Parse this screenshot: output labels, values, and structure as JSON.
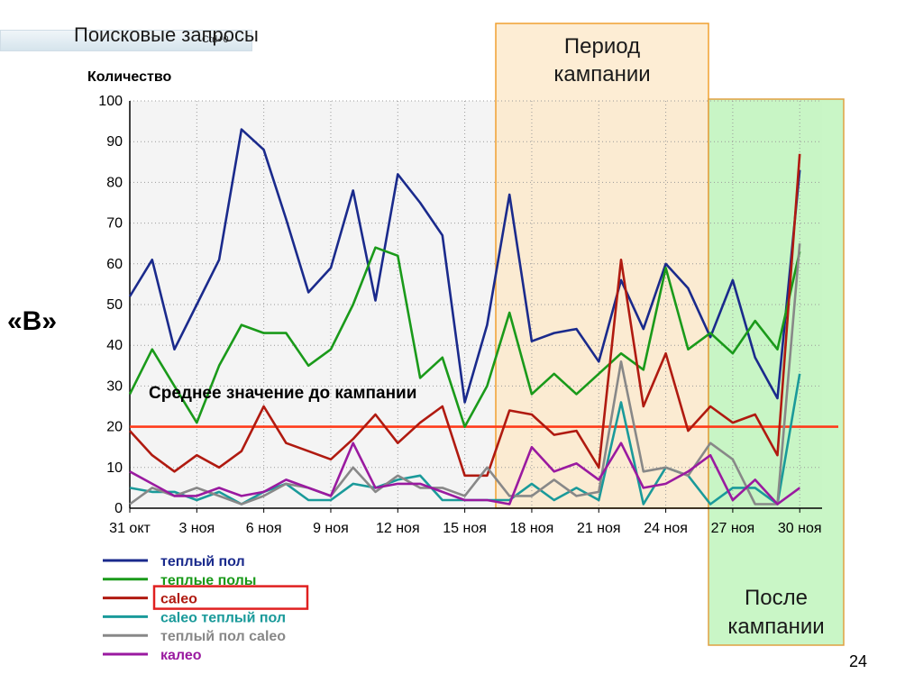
{
  "slide": {
    "title": "Поисковые запросы",
    "zoom_hint": "Ctrl+0",
    "side_label": "«В»",
    "page_number": "24",
    "campaign_box": [
      "Период",
      "кампании"
    ],
    "after_box": [
      "После",
      "кампании"
    ],
    "highlight_legend": "caleo",
    "colors": {
      "campaign_fill": "#fde9c9",
      "campaign_border": "#f0a030",
      "after_fill": "#bff5bc",
      "after_border": "#e0a040",
      "highlight_border": "#e02020"
    }
  },
  "chart_data": {
    "type": "line",
    "ylabel": "Количество",
    "ylim": [
      0,
      100
    ],
    "yticks": [
      0,
      10,
      20,
      30,
      40,
      50,
      60,
      70,
      80,
      90,
      100
    ],
    "xlim": [
      0,
      31
    ],
    "x_tick_labels": [
      "31 окт",
      "3 ноя",
      "6 ноя",
      "9 ноя",
      "12 ноя",
      "15 ноя",
      "18 ноя",
      "21 ноя",
      "24 ноя",
      "27 ноя",
      "30 ноя"
    ],
    "grid": true,
    "legend_position": "bottom-left",
    "reference_line": {
      "value": 20,
      "label": "Среднее значение до кампании",
      "color": "#ff3b1a"
    },
    "series": [
      {
        "name": "теплый пол",
        "color": "#1a2a8c",
        "values": [
          52,
          61,
          39,
          50,
          61,
          93,
          88,
          71,
          53,
          59,
          78,
          51,
          82,
          75,
          67,
          26,
          45,
          77,
          41,
          43,
          44,
          36,
          56,
          44,
          60,
          54,
          42,
          56,
          37,
          27,
          83
        ]
      },
      {
        "name": "теплые полы",
        "color": "#1a9a1a",
        "values": [
          28,
          39,
          30,
          21,
          35,
          45,
          43,
          43,
          35,
          39,
          50,
          64,
          62,
          32,
          37,
          20,
          30,
          48,
          28,
          33,
          28,
          33,
          38,
          34,
          59,
          39,
          43,
          38,
          46,
          39,
          63
        ]
      },
      {
        "name": "caleo",
        "color": "#b01a10",
        "values": [
          19,
          13,
          9,
          13,
          10,
          14,
          25,
          16,
          14,
          12,
          17,
          23,
          16,
          21,
          25,
          8,
          8,
          24,
          23,
          18,
          19,
          10,
          61,
          25,
          38,
          19,
          25,
          21,
          23,
          13,
          87
        ]
      },
      {
        "name": "caleo теплый пол",
        "color": "#1a9a9a",
        "values": [
          5,
          4,
          4,
          2,
          4,
          1,
          4,
          6,
          2,
          2,
          6,
          5,
          7,
          8,
          2,
          2,
          2,
          2,
          6,
          2,
          5,
          2,
          26,
          1,
          10,
          8,
          1,
          5,
          5,
          1,
          33
        ]
      },
      {
        "name": "теплый пол caleo",
        "color": "#888888",
        "values": [
          1,
          5,
          3,
          5,
          3,
          1,
          3,
          6,
          5,
          3,
          10,
          4,
          8,
          5,
          5,
          3,
          10,
          3,
          3,
          7,
          3,
          4,
          36,
          9,
          10,
          8,
          16,
          12,
          1,
          1,
          65
        ]
      },
      {
        "name": "калео",
        "color": "#9a1aa0",
        "values": [
          9,
          6,
          3,
          3,
          5,
          3,
          4,
          7,
          5,
          3,
          16,
          5,
          6,
          6,
          4,
          2,
          2,
          1,
          15,
          9,
          11,
          7,
          16,
          5,
          6,
          9,
          13,
          2,
          7,
          1,
          5
        ]
      }
    ]
  }
}
